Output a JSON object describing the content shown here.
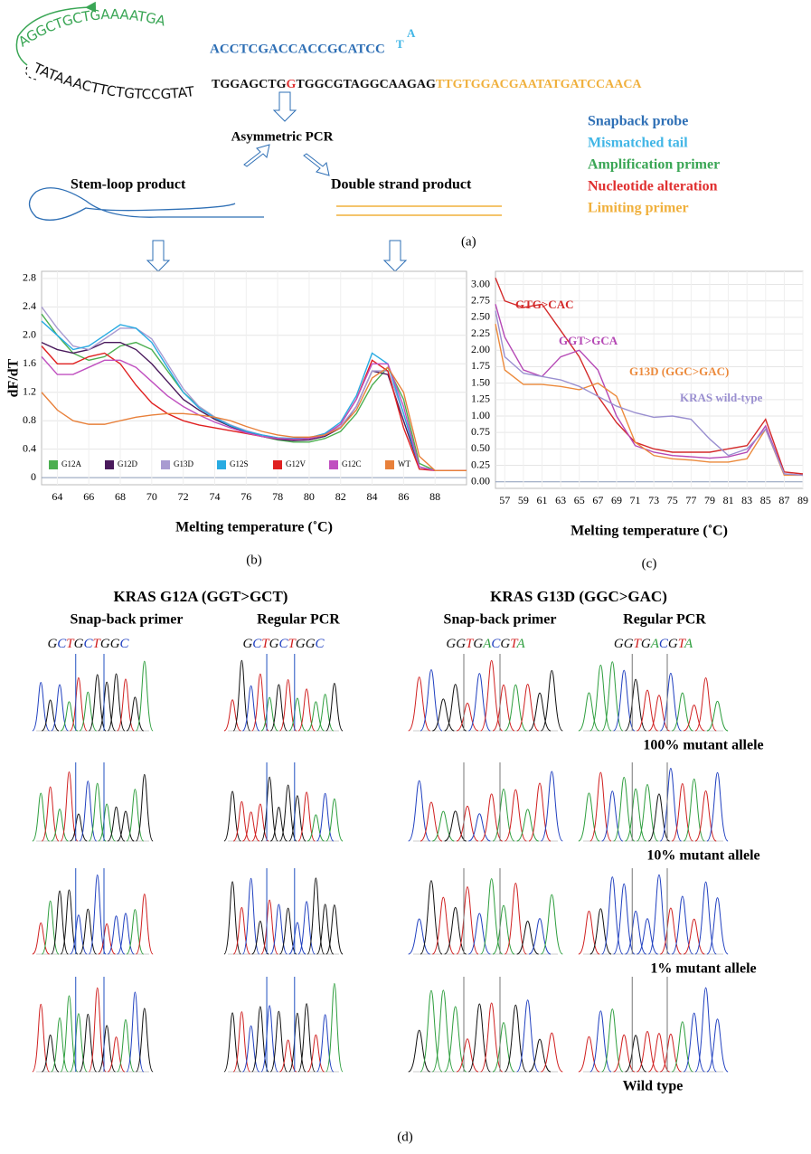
{
  "panel_a": {
    "loop_top": "AGGCTGCTGAAAATGA",
    "loop_bottom": "TATAAACTTCTGTCCGTAT",
    "probe_sequence": "ACCTCGACCACCGCATCC",
    "tail": [
      "T",
      "A"
    ],
    "template": [
      "TGGAGCTG",
      "G",
      "TGGCGTAGGCAAGAG",
      "TTGTGGACGAATATGATCCAACA"
    ],
    "process": "Asymmetric PCR",
    "products": [
      "Stem-loop product",
      "Double strand product"
    ],
    "legend": [
      {
        "name": "Snapback probe",
        "color": "#2e6fb5"
      },
      {
        "name": "Mismatched tail",
        "color": "#41b6e6"
      },
      {
        "name": "Amplification primer",
        "color": "#3aa655"
      },
      {
        "name": "Nucleotide alteration",
        "color": "#e03030"
      },
      {
        "name": "Limiting primer",
        "color": "#f0b03c"
      }
    ],
    "label": "(a)"
  },
  "chart_data": [
    {
      "type": "line",
      "panel_label": "(b)",
      "x_label": "Melting temperature (˚C)",
      "y_label": "dF/dT",
      "x": [
        63,
        64,
        65,
        66,
        67,
        68,
        69,
        70,
        71,
        72,
        73,
        74,
        75,
        76,
        77,
        78,
        79,
        80,
        81,
        82,
        83,
        84,
        85,
        86,
        87,
        88,
        89,
        90
      ],
      "xlim": [
        63,
        90
      ],
      "xticks": [
        64,
        66,
        68,
        70,
        72,
        74,
        76,
        78,
        80,
        82,
        84,
        86,
        88
      ],
      "ylim": [
        -0.1,
        2.9
      ],
      "yticks": [
        0,
        0.4,
        0.8,
        1.2,
        1.6,
        {
          "value": 2,
          "label": "2.0"
        },
        2.4,
        2.8
      ],
      "grid": true,
      "legend": "lower-left",
      "series": [
        {
          "name": "G12A",
          "color": "#4caf50",
          "values": [
            2.3,
            2.0,
            1.75,
            1.65,
            1.7,
            1.85,
            1.9,
            1.8,
            1.5,
            1.2,
            1.0,
            0.85,
            0.74,
            0.65,
            0.58,
            0.53,
            0.5,
            0.5,
            0.55,
            0.65,
            0.9,
            1.3,
            1.55,
            1.1,
            0.2,
            0.1,
            0.1,
            0.1
          ]
        },
        {
          "name": "G12D",
          "color": "#4a1a5c",
          "values": [
            1.9,
            1.8,
            1.75,
            1.8,
            1.9,
            1.9,
            1.8,
            1.6,
            1.35,
            1.1,
            0.95,
            0.82,
            0.72,
            0.64,
            0.58,
            0.54,
            0.52,
            0.53,
            0.58,
            0.7,
            1.0,
            1.5,
            1.45,
            0.8,
            0.15,
            0.1,
            0.1,
            0.1
          ]
        },
        {
          "name": "G13D",
          "color": "#a99bd1",
          "values": [
            2.4,
            2.1,
            1.85,
            1.8,
            1.95,
            2.1,
            2.1,
            1.95,
            1.6,
            1.25,
            1.0,
            0.85,
            0.74,
            0.66,
            0.6,
            0.56,
            0.55,
            0.56,
            0.6,
            0.72,
            1.0,
            1.5,
            1.5,
            0.9,
            0.15,
            0.1,
            0.1,
            0.1
          ]
        },
        {
          "name": "G12S",
          "color": "#29abe2",
          "values": [
            2.2,
            2.0,
            1.8,
            1.85,
            2.0,
            2.15,
            2.1,
            1.9,
            1.55,
            1.2,
            0.98,
            0.84,
            0.73,
            0.65,
            0.6,
            0.56,
            0.55,
            0.56,
            0.62,
            0.78,
            1.15,
            1.75,
            1.6,
            0.9,
            0.15,
            0.1,
            0.1,
            0.1
          ]
        },
        {
          "name": "G12V",
          "color": "#e02020",
          "values": [
            1.85,
            1.6,
            1.6,
            1.7,
            1.75,
            1.6,
            1.3,
            1.05,
            0.9,
            0.8,
            0.74,
            0.7,
            0.66,
            0.62,
            0.58,
            0.55,
            0.54,
            0.55,
            0.6,
            0.75,
            1.1,
            1.65,
            1.5,
            0.7,
            0.12,
            0.1,
            0.1,
            0.1
          ]
        },
        {
          "name": "G12C",
          "color": "#c050c0",
          "values": [
            1.7,
            1.45,
            1.45,
            1.55,
            1.65,
            1.65,
            1.55,
            1.35,
            1.15,
            1.0,
            0.88,
            0.78,
            0.7,
            0.63,
            0.58,
            0.55,
            0.54,
            0.55,
            0.6,
            0.75,
            1.1,
            1.6,
            1.6,
            1.0,
            0.15,
            0.1,
            0.1,
            0.1
          ]
        },
        {
          "name": "WT",
          "color": "#e8803a",
          "values": [
            1.2,
            0.95,
            0.8,
            0.75,
            0.75,
            0.8,
            0.85,
            0.88,
            0.9,
            0.9,
            0.88,
            0.85,
            0.8,
            0.72,
            0.65,
            0.6,
            0.57,
            0.57,
            0.6,
            0.7,
            0.95,
            1.4,
            1.55,
            1.2,
            0.3,
            0.1,
            0.1,
            0.1
          ]
        }
      ]
    },
    {
      "type": "line",
      "panel_label": "(c)",
      "x_label": "Melting temperature (˚C)",
      "x": [
        56,
        57,
        59,
        61,
        63,
        65,
        67,
        69,
        71,
        73,
        75,
        77,
        79,
        81,
        83,
        85,
        87,
        89
      ],
      "xlim": [
        56,
        89
      ],
      "xticks": [
        57,
        59,
        61,
        63,
        65,
        67,
        69,
        71,
        73,
        75,
        77,
        79,
        81,
        83,
        85,
        87,
        89
      ],
      "ylim": [
        -0.1,
        3.2
      ],
      "yticks": [
        {
          "value": 0,
          "label": "0.00"
        },
        {
          "value": 0.25,
          "label": "0.25"
        },
        {
          "value": 0.5,
          "label": "0.50"
        },
        {
          "value": 0.75,
          "label": "0.75"
        },
        {
          "value": 1,
          "label": "1.00"
        },
        {
          "value": 1.25,
          "label": "1.25"
        },
        {
          "value": 1.5,
          "label": "1.50"
        },
        {
          "value": 1.75,
          "label": "1.75"
        },
        {
          "value": 2,
          "label": "2.00"
        },
        {
          "value": 2.25,
          "label": "2.25"
        },
        {
          "value": 2.5,
          "label": "2.50"
        },
        {
          "value": 2.75,
          "label": "2.75"
        },
        {
          "value": 3,
          "label": "3.00"
        }
      ],
      "grid": true,
      "series": [
        {
          "name": "GTG>CAC",
          "color": "#d42a2a",
          "values": [
            3.1,
            2.75,
            2.65,
            2.7,
            2.3,
            1.9,
            1.3,
            0.9,
            0.6,
            0.5,
            0.45,
            0.45,
            0.45,
            0.5,
            0.55,
            0.95,
            0.15,
            0.12
          ]
        },
        {
          "name": "GGT>GCA",
          "color": "#b548b5",
          "values": [
            2.7,
            2.2,
            1.7,
            1.6,
            1.9,
            2.0,
            1.7,
            1.0,
            0.55,
            0.45,
            0.4,
            0.38,
            0.36,
            0.38,
            0.45,
            0.85,
            0.12,
            0.1
          ]
        },
        {
          "name": "G13D (GGC>GAC)",
          "color": "#ec8a3c",
          "values": [
            2.4,
            1.7,
            1.48,
            1.48,
            1.45,
            1.4,
            1.5,
            1.3,
            0.6,
            0.4,
            0.35,
            0.33,
            0.3,
            0.3,
            0.35,
            0.8,
            0.1,
            0.1
          ]
        },
        {
          "name": "KRAS wild-type",
          "color": "#9a8fd0",
          "values": [
            2.6,
            1.9,
            1.65,
            1.6,
            1.55,
            1.45,
            1.3,
            1.15,
            1.05,
            0.98,
            1.0,
            0.95,
            0.65,
            0.4,
            0.5,
            0.8,
            0.12,
            0.1
          ]
        }
      ]
    }
  ],
  "panel_d": {
    "titles": [
      "KRAS G12A (GGT>GCT)",
      "KRAS G13D (GGC>GAC)"
    ],
    "columns": [
      "Snap-back primer",
      "Regular PCR",
      "Snap-back primer",
      "Regular PCR"
    ],
    "sequences": [
      "GCTGCTGGC",
      "GCTGCTGGC",
      "GGTGACGTA",
      "GGTGACGTA"
    ],
    "rows": [
      "100% mutant allele",
      "10% mutant allele",
      "1% mutant allele",
      "Wild type"
    ],
    "label": "(d)"
  }
}
